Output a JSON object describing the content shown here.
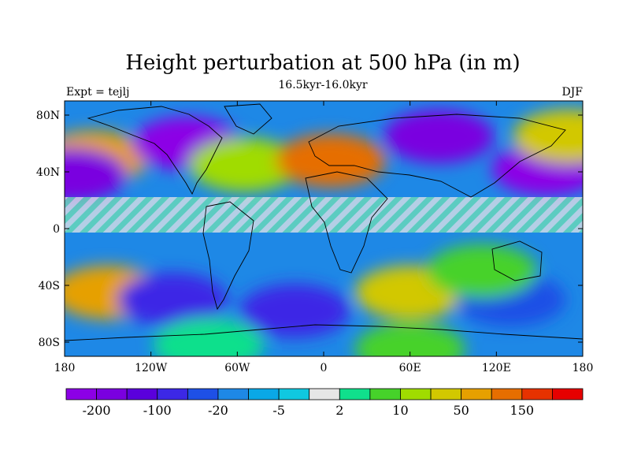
{
  "title": "Height perturbation at 500 hPa (in m)",
  "subtitle": "16.5kyr-16.0kyr",
  "left_label": "Expt = tejlj",
  "right_label": "DJF",
  "map": {
    "projection": "cylindrical-equidistant",
    "lon_range": [
      -180,
      180
    ],
    "lat_range": [
      -90,
      90
    ],
    "y_ticks": [
      {
        "value": 80,
        "label": "80N"
      },
      {
        "value": 40,
        "label": "40N"
      },
      {
        "value": 0,
        "label": "0"
      },
      {
        "value": -40,
        "label": "40S"
      },
      {
        "value": -80,
        "label": "80S"
      }
    ],
    "x_ticks": [
      {
        "value": -180,
        "label": "180"
      },
      {
        "value": -120,
        "label": "120W"
      },
      {
        "value": -60,
        "label": "60W"
      },
      {
        "value": 0,
        "label": "0"
      },
      {
        "value": 60,
        "label": "60E"
      },
      {
        "value": 120,
        "label": "120E"
      },
      {
        "value": 180,
        "label": "180"
      }
    ],
    "anomaly_regions": [
      {
        "lon": -160,
        "lat": 50,
        "level": 13
      },
      {
        "lon": -95,
        "lat": 60,
        "level": 0
      },
      {
        "lon": -175,
        "lat": 38,
        "level": 1
      },
      {
        "lon": -55,
        "lat": 45,
        "level": 11
      },
      {
        "lon": 5,
        "lat": 48,
        "level": 14
      },
      {
        "lon": 80,
        "lat": 65,
        "level": 1
      },
      {
        "lon": 155,
        "lat": 42,
        "level": 0
      },
      {
        "lon": 170,
        "lat": 65,
        "level": 12
      },
      {
        "lon": -150,
        "lat": -45,
        "level": 13
      },
      {
        "lon": -105,
        "lat": -50,
        "level": 3
      },
      {
        "lon": -20,
        "lat": -58,
        "level": 3
      },
      {
        "lon": 60,
        "lat": -45,
        "level": 12
      },
      {
        "lon": 130,
        "lat": -50,
        "level": 4
      },
      {
        "lon": 110,
        "lat": -30,
        "level": 10
      },
      {
        "lon": -80,
        "lat": -82,
        "level": 9
      },
      {
        "lon": 60,
        "lat": -85,
        "level": 10
      }
    ]
  },
  "colorbar": {
    "colors": [
      "#8C00E6",
      "#7A00E0",
      "#5A00DC",
      "#3C28E6",
      "#1E50E6",
      "#1E88E6",
      "#0AA8E6",
      "#10C8E0",
      "#E6E6E6",
      "#10E08C",
      "#46D22A",
      "#A0DC00",
      "#D2C800",
      "#E6A000",
      "#E66E00",
      "#E63200",
      "#E60000"
    ],
    "tick_labels": [
      {
        "after_box": 1,
        "label": "-200"
      },
      {
        "after_box": 3,
        "label": "-100"
      },
      {
        "after_box": 5,
        "label": "-20"
      },
      {
        "after_box": 7,
        "label": "-5"
      },
      {
        "after_box": 9,
        "label": "2"
      },
      {
        "after_box": 11,
        "label": "10"
      },
      {
        "after_box": 13,
        "label": "50"
      },
      {
        "after_box": 15,
        "label": "150"
      }
    ]
  }
}
